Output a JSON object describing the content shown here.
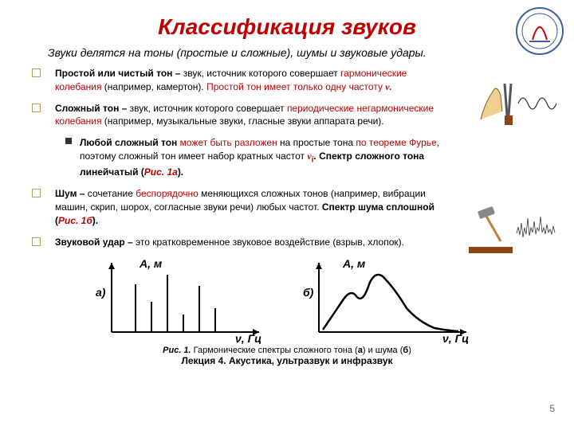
{
  "title": "Классификация звуков",
  "subtitle": "Звуки делятся на тоны (простые и сложные), шумы и звуковые удары.",
  "bullets": {
    "b1_a": "Простой или чистый тон –",
    "b1_b": " звук, источник которого совершает ",
    "b1_c": "гармонические колебания",
    "b1_d": " (например, камертон). ",
    "b1_e": "Простой тон имеет только одну частоту ",
    "b1_nu": "ν.",
    "b2_a": "Сложный тон –",
    "b2_b": " звук, источник которого совершает ",
    "b2_c": "периодические негармонические колебания",
    "b2_d": " (например, музыкальные звуки, гласные звуки аппарата речи).",
    "b2s_a": "Любой сложный тон ",
    "b2s_b": "может быть разложен ",
    "b2s_c": "на простые тона ",
    "b2s_d": "по теореме Фурье",
    "b2s_e": ", поэтому сложный тон имеет набор кратных частот ",
    "b2s_nu": "ν",
    "b2s_i": "i",
    "b2s_f": ". Спектр сложного тона линейчатый (",
    "b2s_g": "Рис. 1а",
    "b2s_h": ").",
    "b3_a": "Шум –",
    "b3_b": " сочетание ",
    "b3_c": "беспорядочно",
    "b3_d": " меняющихся сложных тонов (например, вибрации машин, скрип, шорох, согласные звуки речи) любых частот. ",
    "b3_e": "Спектр шума сплошной (",
    "b3_f": "Рис. 1б",
    "b3_g": ").",
    "b4_a": "Звуковой удар –",
    "b4_b": " это кратковременное звуковое воздействие (взрыв, хлопок)."
  },
  "chart": {
    "ylabel": "А, м",
    "xlabel": "ν, Гц",
    "label_a": "а)",
    "label_b": "б)",
    "line_spectrum": {
      "x": [
        30,
        50,
        70,
        90,
        110,
        130
      ],
      "h": [
        60,
        38,
        72,
        22,
        58,
        30
      ]
    },
    "axis_color": "#000000",
    "line_width": 2
  },
  "caption_a": "Рис. 1.",
  "caption_b": " Гармонические спектры сложного тона (",
  "caption_c": "а",
  "caption_d": ") и шума (",
  "caption_e": "б",
  "caption_f": ")",
  "lecture": "Лекция 4. Акустика, ультразвук и инфразвук",
  "pagenum": "5",
  "colors": {
    "title": "#c00000",
    "accent": "#c00000"
  }
}
